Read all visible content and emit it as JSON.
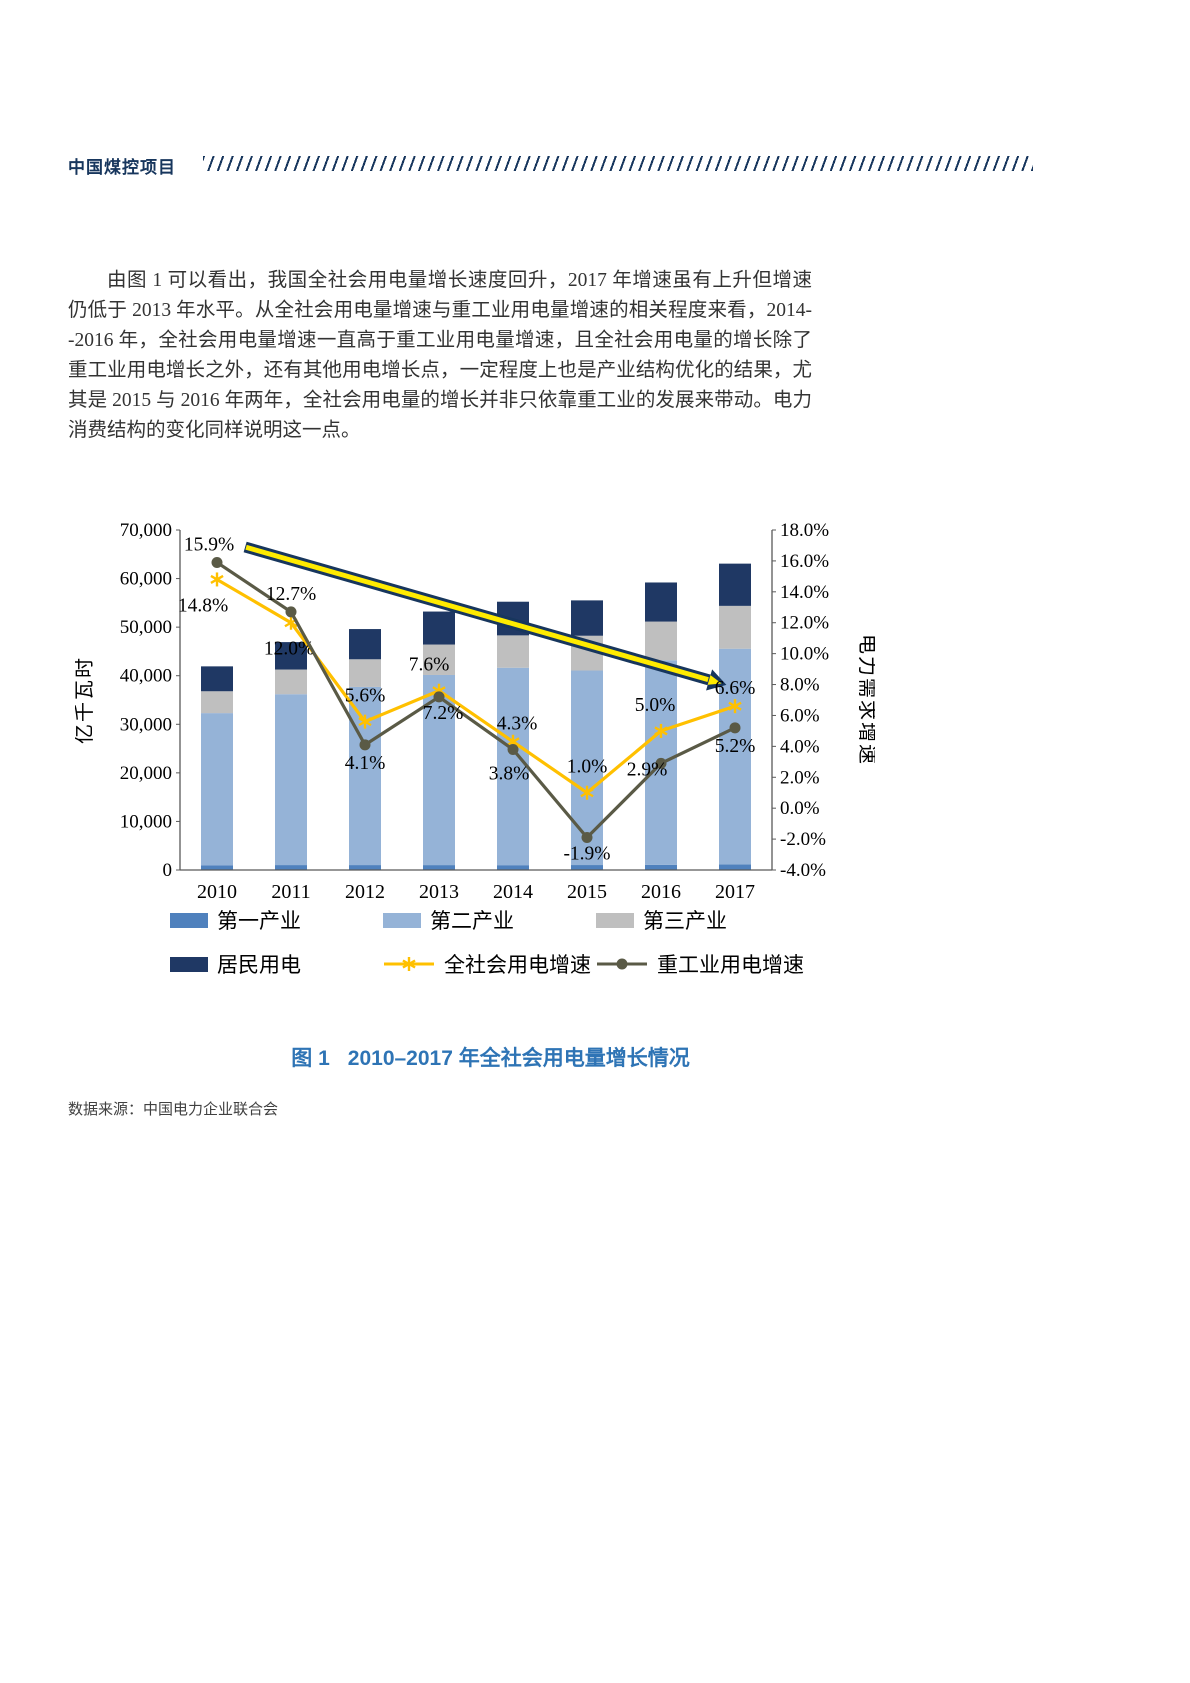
{
  "header": {
    "brand": "中国煤控项目"
  },
  "paragraph": "由图 1 可以看出，我国全社会用电量增长速度回升，2017 年增速虽有上升但增速仍低于 2013 年水平。从全社会用电量增速与重工业用电量增速的相关程度来看，2014--2016 年，全社会用电量增速一直高于重工业用电量增速，且全社会用电量的增长除了重工业用电增长之外，还有其他用电增长点，一定程度上也是产业结构优化的结果，尤其是 2015 与 2016 年两年，全社会用电量的增长并非只依靠重工业的发展来带动。电力消费结构的变化同样说明这一点。",
  "figure": {
    "caption_label": "图 1",
    "caption_title": "2010–2017 年全社会用电量增长情况"
  },
  "source_note": "数据来源：中国电力企业联合会",
  "colors": {
    "accent_navy": "#17365D",
    "caption_blue": "#2E74B5"
  },
  "chart_data": {
    "type": "combo_stacked_bar_line",
    "categories": [
      "2010",
      "2011",
      "2012",
      "2013",
      "2014",
      "2015",
      "2016",
      "2017"
    ],
    "left_axis": {
      "title": "亿千瓦时",
      "min": 0,
      "max": 70000,
      "step": 10000,
      "tick_labels": [
        "0",
        "10,000",
        "20,000",
        "30,000",
        "40,000",
        "50,000",
        "60,000",
        "70,000"
      ]
    },
    "right_axis": {
      "title": "电力需求增速",
      "min": -4,
      "max": 18,
      "step": 2,
      "tick_labels": [
        "-4.0%",
        "-2.0%",
        "0.0%",
        "2.0%",
        "4.0%",
        "6.0%",
        "8.0%",
        "10.0%",
        "12.0%",
        "14.0%",
        "16.0%",
        "18.0%"
      ]
    },
    "bar_series": [
      {
        "name": "第一产业",
        "color": "#4F81BD",
        "values": [
          980,
          1015,
          1015,
          1010,
          995,
          1020,
          1075,
          1155
        ]
      },
      {
        "name": "第二产业",
        "color": "#95B3D7",
        "values": [
          31320,
          35180,
          36670,
          39140,
          40650,
          40050,
          42110,
          44410
        ]
      },
      {
        "name": "第三产业",
        "color": "#BFBFBF",
        "values": [
          4500,
          5080,
          5700,
          6270,
          6660,
          7160,
          7960,
          8815
        ]
      },
      {
        "name": "居民用电",
        "color": "#1F3864",
        "values": [
          5125,
          5645,
          6220,
          6790,
          6930,
          7280,
          8050,
          8695
        ]
      }
    ],
    "line_series": [
      {
        "name": "全社会用电增速",
        "color": "#FFC000",
        "marker": "star",
        "axis": "right",
        "values": [
          14.8,
          12.0,
          5.6,
          7.6,
          4.3,
          1.0,
          5.0,
          6.6
        ],
        "labels": [
          "14.8%",
          "12.0%",
          "5.6%",
          "7.6%",
          "4.3%",
          "1.0%",
          "5.0%",
          "6.6%"
        ]
      },
      {
        "name": "重工业用电增速",
        "color": "#5A5A46",
        "marker": "circle",
        "axis": "right",
        "values": [
          15.9,
          12.7,
          4.1,
          7.2,
          3.8,
          -1.9,
          2.9,
          5.2
        ],
        "labels": [
          "15.9%",
          "12.7%",
          "4.1%",
          "7.2%",
          "3.8%",
          "-1.9%",
          "2.9%",
          "5.2%"
        ]
      }
    ],
    "legend_rows": [
      [
        "第一产业",
        "第二产业",
        "第三产业"
      ],
      [
        "居民用电",
        "全社会用电增速",
        "重工业用电增速"
      ]
    ],
    "trend_arrow": {
      "x1_slot": 0.88,
      "y1_pct": 16.9,
      "x2_slot": 7.15,
      "y2_pct": 8.3,
      "outline_color": "#17365D",
      "fill_color": "#FFEB00"
    }
  }
}
